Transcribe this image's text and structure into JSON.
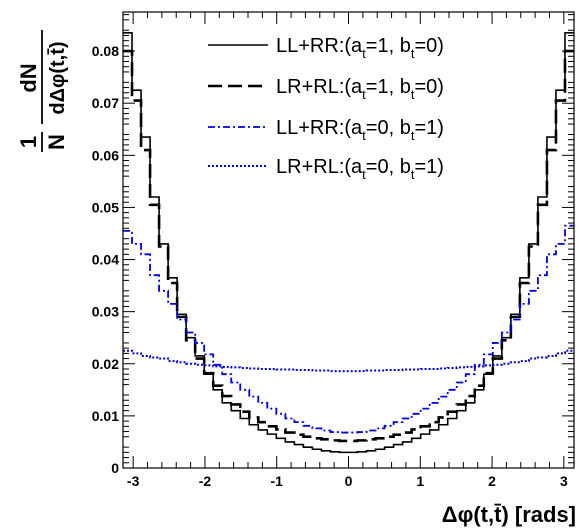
{
  "chart_data": {
    "type": "line",
    "style": "step-histogram",
    "xlabel": "Δφ(t,t̄) [rads]",
    "ylabel": {
      "prefix_numerator": "1",
      "prefix_denominator": "N",
      "numerator": "dN",
      "denominator": "dΔφ(t,t̄)"
    },
    "xlim": [
      -3.14159,
      3.14159
    ],
    "ylim": [
      0,
      0.0875
    ],
    "x_ticks": [
      -3,
      -2,
      -1,
      0,
      1,
      2,
      3
    ],
    "x_tick_labels": [
      "-3",
      "-2",
      "-1",
      "0",
      "1",
      "2",
      "3"
    ],
    "y_ticks": [
      0,
      0.01,
      0.02,
      0.03,
      0.04,
      0.05,
      0.06,
      0.07,
      0.08
    ],
    "y_tick_labels": [
      "0",
      "0.01",
      "0.02",
      "0.03",
      "0.04",
      "0.05",
      "0.06",
      "0.07",
      "0.08"
    ],
    "grid": false,
    "legend_position": "top-right",
    "bins": 50,
    "series": [
      {
        "name": "LL+RR:(a_t=1, b_t=0)",
        "legend": {
          "main": "LL+RR:(a",
          "sub1": "t",
          "mid": "=1, b",
          "sub2": "t",
          "end": "=0)"
        },
        "color": "#000000",
        "dash": "solid",
        "values": [
          0.0835,
          0.0725,
          0.0635,
          0.052,
          0.043,
          0.0365,
          0.0295,
          0.025,
          0.0215,
          0.018,
          0.015,
          0.0125,
          0.011,
          0.0095,
          0.0083,
          0.0073,
          0.0065,
          0.0057,
          0.005,
          0.0045,
          0.004,
          0.0036,
          0.0033,
          0.0031,
          0.003,
          0.003,
          0.0031,
          0.0033,
          0.0036,
          0.004,
          0.0045,
          0.005,
          0.0057,
          0.0065,
          0.0073,
          0.0083,
          0.0095,
          0.011,
          0.0125,
          0.015,
          0.018,
          0.0215,
          0.025,
          0.0295,
          0.0365,
          0.043,
          0.052,
          0.0635,
          0.0725,
          0.0835
        ]
      },
      {
        "name": "LR+RL:(a_t=1, b_t=0)",
        "legend": {
          "main": "LR+RL:(a",
          "sub1": "t",
          "mid": "=1, b",
          "sub2": "t",
          "end": "=0)"
        },
        "color": "#000000",
        "dash": "long-dash",
        "values": [
          0.08,
          0.0705,
          0.061,
          0.0505,
          0.0425,
          0.0355,
          0.029,
          0.0245,
          0.021,
          0.0182,
          0.0158,
          0.0138,
          0.0122,
          0.0108,
          0.0097,
          0.0088,
          0.008,
          0.0074,
          0.0068,
          0.0064,
          0.006,
          0.0057,
          0.0055,
          0.0053,
          0.0052,
          0.0052,
          0.0053,
          0.0055,
          0.0057,
          0.006,
          0.0064,
          0.0068,
          0.0074,
          0.008,
          0.0088,
          0.0097,
          0.0108,
          0.0122,
          0.0138,
          0.0158,
          0.0182,
          0.021,
          0.0245,
          0.029,
          0.0355,
          0.0425,
          0.0505,
          0.061,
          0.0705,
          0.08
        ]
      },
      {
        "name": "LL+RR:(a_t=0, b_t=1)",
        "legend": {
          "main": "LL+RR:(a",
          "sub1": "t",
          "mid": "=0, b",
          "sub2": "t",
          "end": "=1)"
        },
        "color": "#0000dd",
        "dash": "dash-dot",
        "values": [
          0.0455,
          0.043,
          0.041,
          0.037,
          0.034,
          0.0315,
          0.0285,
          0.026,
          0.024,
          0.0218,
          0.0198,
          0.018,
          0.0164,
          0.015,
          0.0137,
          0.0125,
          0.0114,
          0.0104,
          0.0095,
          0.0088,
          0.0081,
          0.0076,
          0.0072,
          0.0069,
          0.0068,
          0.0068,
          0.0069,
          0.0072,
          0.0076,
          0.0081,
          0.0088,
          0.0095,
          0.0104,
          0.0114,
          0.0125,
          0.0137,
          0.015,
          0.0164,
          0.018,
          0.0198,
          0.0218,
          0.024,
          0.026,
          0.0285,
          0.0315,
          0.034,
          0.037,
          0.041,
          0.043,
          0.0465
        ]
      },
      {
        "name": "LR+RL:(a_t=0, b_t=1)",
        "legend": {
          "main": "LR+RL:(a",
          "sub1": "t",
          "mid": "=0, b",
          "sub2": "t",
          "end": "=1)"
        },
        "color": "#0000dd",
        "dash": "dotted",
        "values": [
          0.0225,
          0.022,
          0.0215,
          0.0212,
          0.021,
          0.0205,
          0.0203,
          0.02,
          0.0198,
          0.0197,
          0.0195,
          0.0194,
          0.0193,
          0.0192,
          0.0191,
          0.019,
          0.019,
          0.0189,
          0.0189,
          0.0188,
          0.0188,
          0.0187,
          0.0187,
          0.0186,
          0.0186,
          0.0186,
          0.0186,
          0.0187,
          0.0187,
          0.0188,
          0.0188,
          0.0189,
          0.0189,
          0.019,
          0.019,
          0.0191,
          0.0192,
          0.0193,
          0.0194,
          0.0195,
          0.0197,
          0.0198,
          0.02,
          0.0203,
          0.0205,
          0.021,
          0.0212,
          0.0215,
          0.022,
          0.0225
        ]
      }
    ]
  }
}
